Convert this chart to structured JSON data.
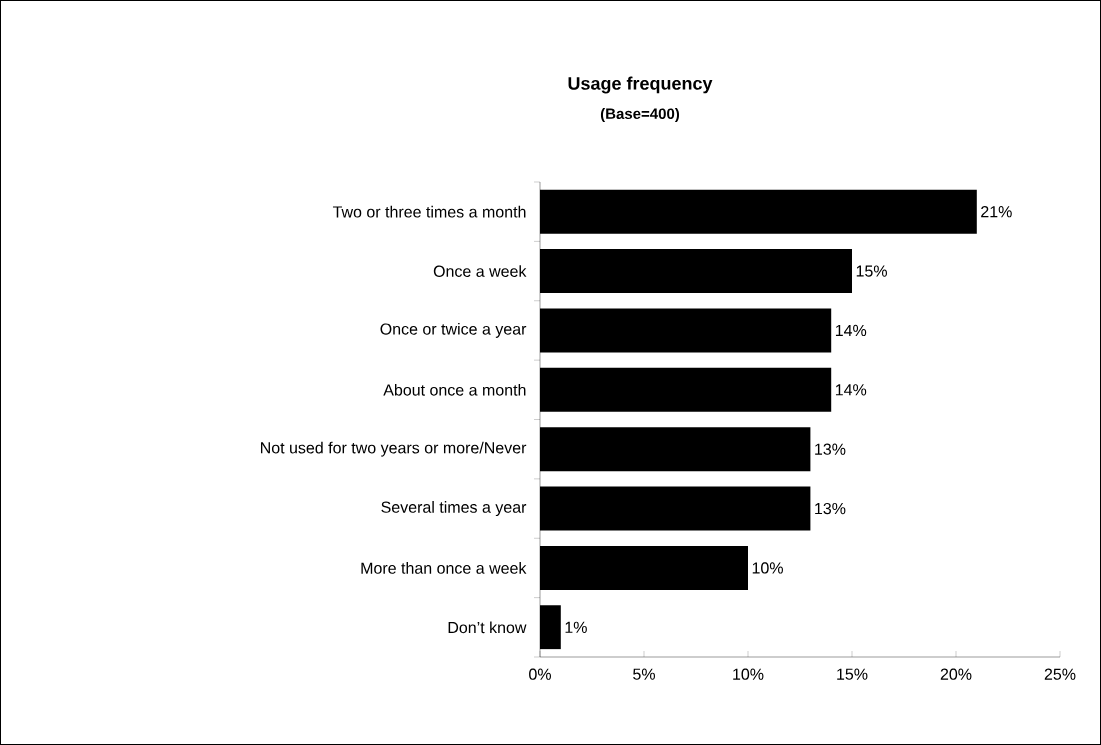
{
  "chart_data": {
    "type": "bar",
    "orientation": "horizontal",
    "title": "Usage frequency",
    "subtitle": "(Base=400)",
    "categories": [
      "Two or three times a month",
      "Once a week",
      "Once or twice a year",
      "About once a month",
      "Not used for two years or more/Never",
      "Several times a year",
      "More than once a week",
      "Don’t know"
    ],
    "values": [
      21,
      15,
      14,
      14,
      13,
      13,
      10,
      1
    ],
    "value_labels": [
      "21%",
      "15%",
      "14%",
      "14%",
      "13%",
      "13%",
      "10%",
      "1%"
    ],
    "color": "#000000",
    "xlim": [
      0,
      25
    ],
    "xticks": [
      {
        "value": 0,
        "label": "0%"
      },
      {
        "value": 5,
        "label": "5%"
      },
      {
        "value": 10,
        "label": "10%"
      },
      {
        "value": 15,
        "label": "15%"
      },
      {
        "value": 20,
        "label": "20%"
      },
      {
        "value": 25,
        "label": "25%"
      }
    ],
    "grid": false
  }
}
